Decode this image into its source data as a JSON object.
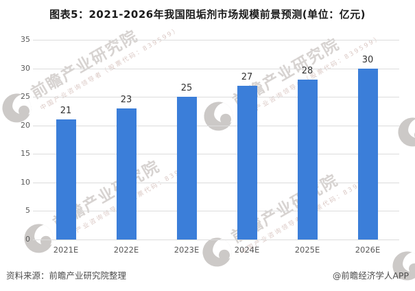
{
  "title": "图表5：2021-2026年我国阻垢剂市场规模前景预测(单位：亿元)",
  "chart_data": {
    "type": "bar",
    "categories": [
      "2021E",
      "2022E",
      "2023E",
      "2024E",
      "2025E",
      "2026E"
    ],
    "values": [
      21,
      23,
      25,
      27,
      28,
      30
    ],
    "title": "图表5：2021-2026年我国阻垢剂市场规模前景预测(单位：亿元)",
    "xlabel": "",
    "ylabel": "",
    "unit": "亿元",
    "ylim": [
      0,
      35
    ],
    "yticks": [
      0,
      5,
      10,
      15,
      20,
      25,
      30,
      35
    ],
    "grid": true,
    "legend": false,
    "bar_color": "#3b7ed9",
    "value_labels_shown": true
  },
  "watermark": {
    "main_text": "前瞻产业研究院",
    "sub_text": "中国产业咨询领导者（股票代码：839599）"
  },
  "footer": {
    "source": "资料来源：前瞻产业研究院整理",
    "credit": "@前瞻经济学人APP"
  },
  "colors": {
    "bar": "#3b7ed9",
    "gridline": "#dcdcdc",
    "axis_label": "#595959",
    "value_label": "#333333",
    "title": "#1a1a1a",
    "footer_text": "#4d4d4d",
    "watermark_main": "#d7d3d1",
    "watermark_sub": "#dbc9c5",
    "background": "#ffffff"
  }
}
